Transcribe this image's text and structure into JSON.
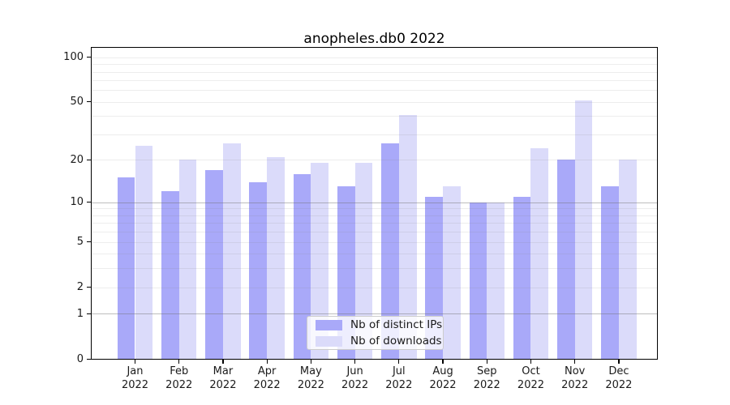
{
  "chart_data": {
    "type": "bar",
    "title": "anopheles.db0 2022",
    "scale": "log1p",
    "categories": [
      "Jan",
      "Feb",
      "Mar",
      "Apr",
      "May",
      "Jun",
      "Jul",
      "Aug",
      "Sep",
      "Oct",
      "Nov",
      "Dec"
    ],
    "year_label": "2022",
    "series": [
      {
        "name": "Nb of distinct IPs",
        "color": "#a9a9f9",
        "values": [
          15,
          12,
          17,
          14,
          16,
          13,
          26,
          11,
          10,
          11,
          20,
          13
        ]
      },
      {
        "name": "Nb of downloads",
        "color": "#dbdbfa",
        "values": [
          25,
          20,
          26,
          21,
          19,
          19,
          41,
          13,
          10,
          24,
          51,
          20
        ]
      }
    ],
    "yticks": [
      0,
      1,
      2,
      5,
      10,
      20,
      50,
      100
    ],
    "ytick_labels": [
      "0",
      "1",
      "2",
      "5",
      "10",
      "20",
      "50",
      "100"
    ],
    "minor_gridlines": [
      2,
      3,
      4,
      5,
      6,
      7,
      8,
      9,
      20,
      30,
      40,
      50,
      60,
      70,
      80,
      90,
      100
    ],
    "major_gridlines": [
      1,
      10
    ],
    "ylim": [
      0,
      115
    ],
    "xlabel": "",
    "ylabel": "",
    "grid": true,
    "legend_position": "bottom-center",
    "colors": {
      "distinct_ips": "#a9a9f9",
      "downloads": "#dbdbfa"
    }
  }
}
